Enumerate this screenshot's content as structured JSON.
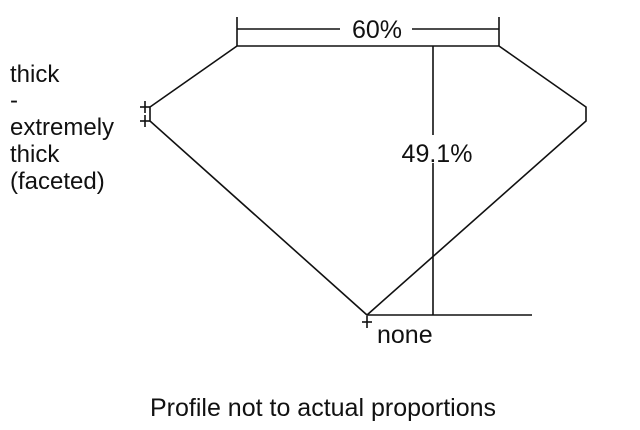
{
  "table_label": "60%",
  "depth_label": "49.1%",
  "girdle_label_lines": [
    "thick",
    "-",
    "extremely",
    "thick",
    "(faceted)"
  ],
  "culet_label": "none",
  "footer": "Profile not to actual proportions"
}
